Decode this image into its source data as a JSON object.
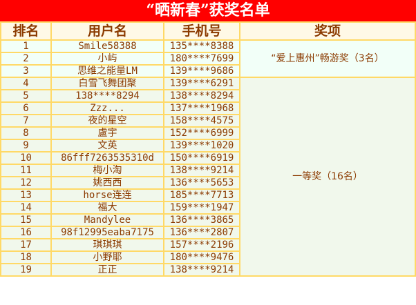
{
  "title": "“晒新春”获奖名单",
  "headers": [
    "排名",
    "用户名",
    "手机号",
    "奖项"
  ],
  "prizes": [
    "“爱上惠州”畅游奖（3名）",
    "一等奖（16名）"
  ],
  "colors": {
    "title_bg": "#ff0000",
    "border": "#ffd966",
    "text": "#8b3a00"
  },
  "rows": [
    {
      "rank": "1",
      "user": "Smile58388",
      "phone": "135****8388"
    },
    {
      "rank": "2",
      "user": "小屿",
      "phone": "180****7699"
    },
    {
      "rank": "3",
      "user": "思维之能量LM",
      "phone": "139****9686"
    },
    {
      "rank": "4",
      "user": "白雪飞舞团聚",
      "phone": "139****6291"
    },
    {
      "rank": "5",
      "user": "138****8294",
      "phone": "138****8294"
    },
    {
      "rank": "6",
      "user": "Zzz...",
      "phone": "137****1968"
    },
    {
      "rank": "7",
      "user": "夜的星空",
      "phone": "158****4575"
    },
    {
      "rank": "8",
      "user": "盧宇",
      "phone": "152****6999"
    },
    {
      "rank": "9",
      "user": "文英",
      "phone": "139****1020"
    },
    {
      "rank": "10",
      "user": "86fff7263535310d",
      "phone": "150****6919"
    },
    {
      "rank": "11",
      "user": "梅小淘",
      "phone": "138****9214"
    },
    {
      "rank": "12",
      "user": "姚西西",
      "phone": "136****5653"
    },
    {
      "rank": "13",
      "user": "horse连连",
      "phone": "185****7713"
    },
    {
      "rank": "14",
      "user": "福大",
      "phone": "159****1947"
    },
    {
      "rank": "15",
      "user": "Mandylee",
      "phone": "136****3865"
    },
    {
      "rank": "16",
      "user": "98f12995eaba7175",
      "phone": "136****2807"
    },
    {
      "rank": "17",
      "user": "琪琪琪",
      "phone": "157****2196"
    },
    {
      "rank": "18",
      "user": "小野耶",
      "phone": "180****9476"
    },
    {
      "rank": "19",
      "user": "正正",
      "phone": "138****9214"
    }
  ]
}
